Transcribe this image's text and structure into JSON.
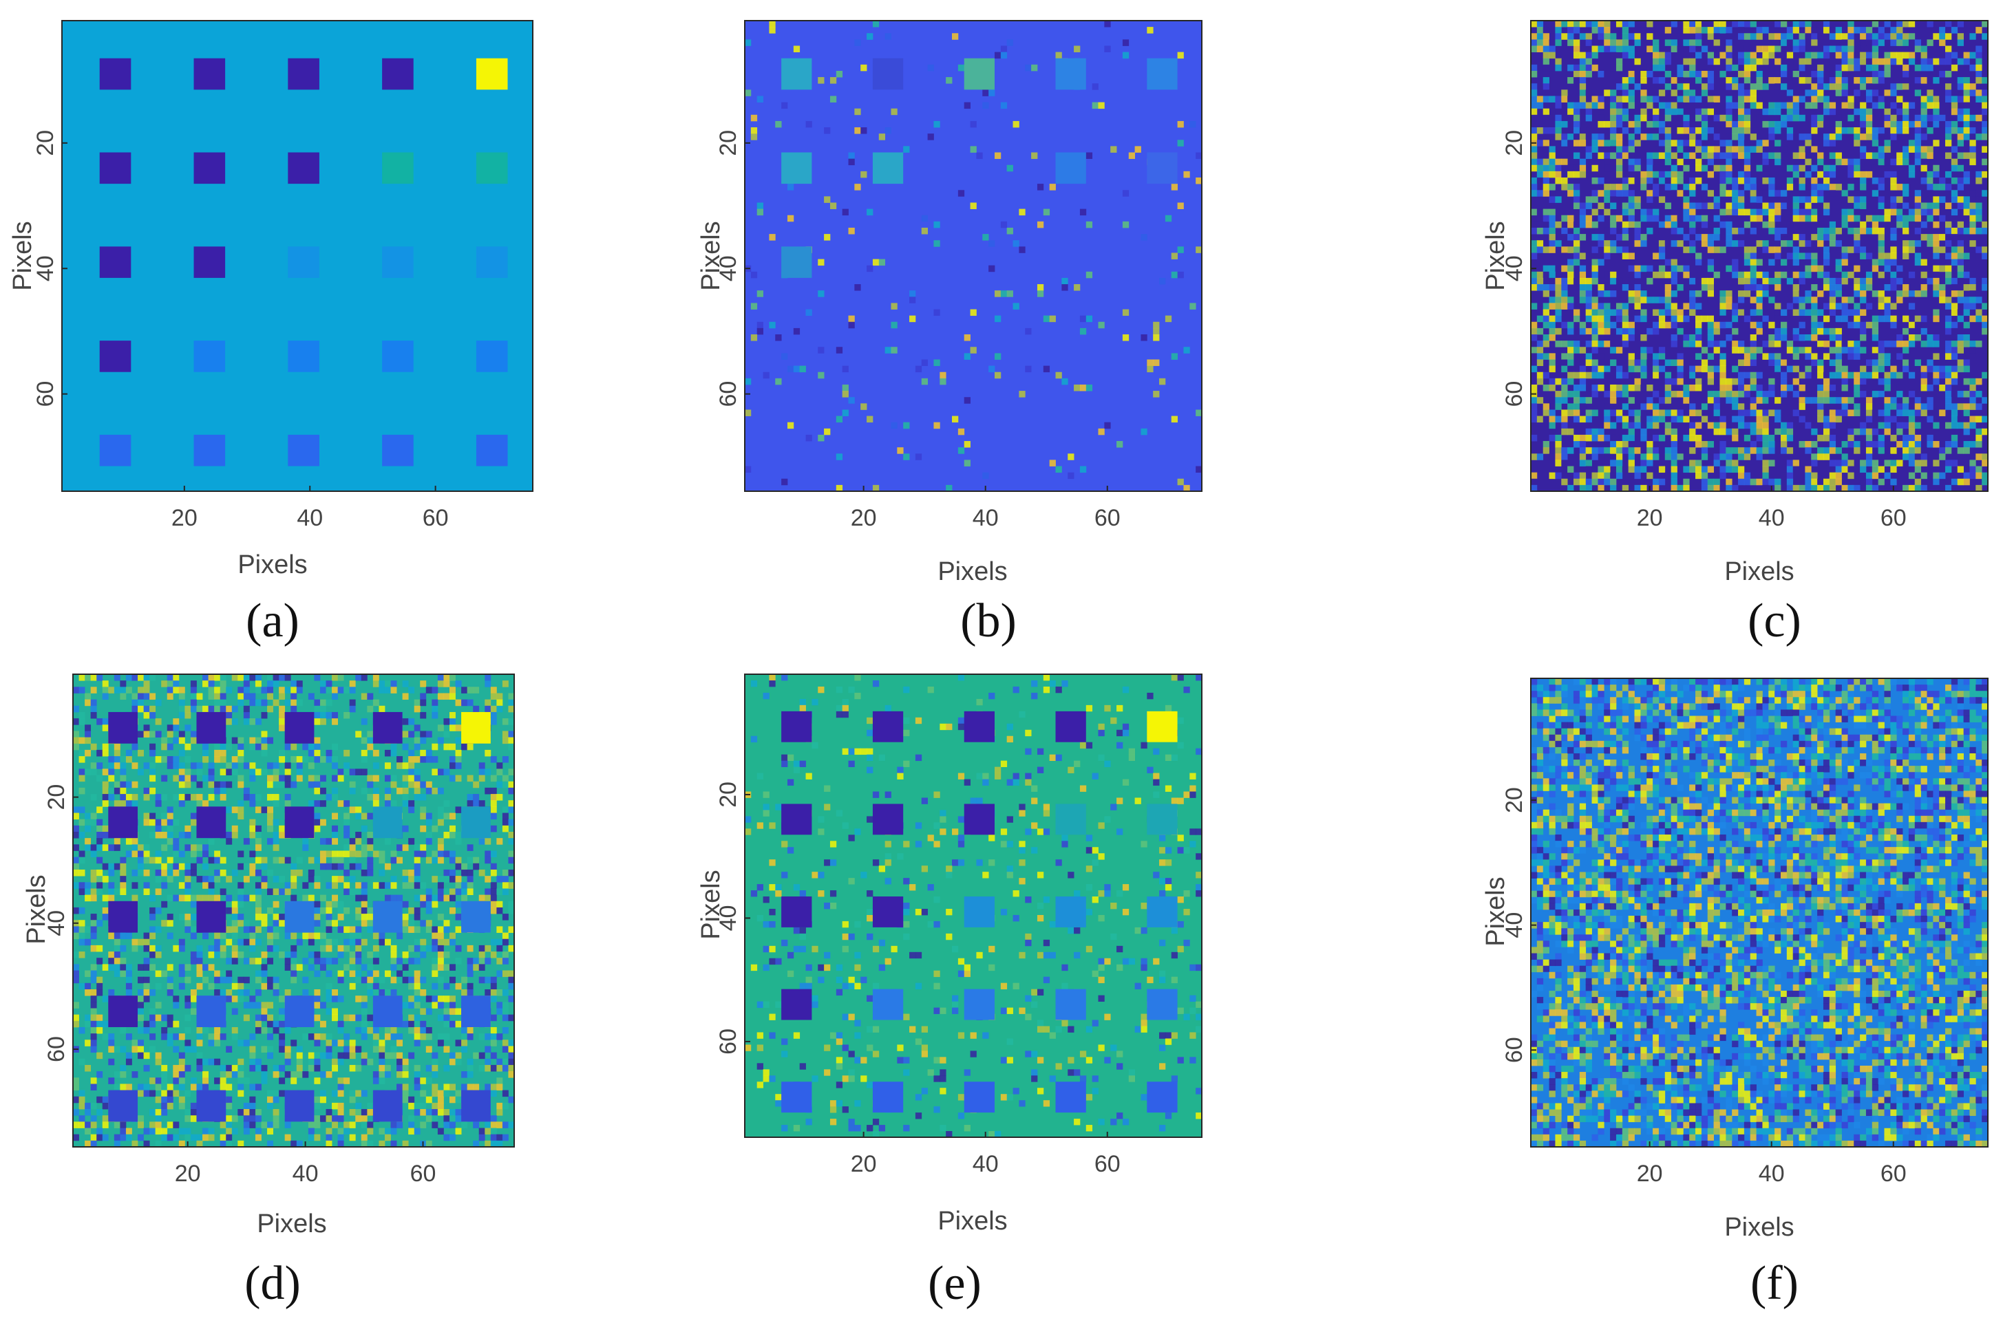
{
  "figure": {
    "panel_count": 6
  },
  "chart_data": [
    {
      "id": "a",
      "type": "heatmap",
      "panel_label": "(a)",
      "xlabel": "Pixels",
      "ylabel": "Pixels",
      "xlim": [
        1,
        75
      ],
      "ylim": [
        1,
        75
      ],
      "xticks": [
        20,
        40,
        60
      ],
      "yticks": [
        20,
        40,
        60
      ],
      "background_color": "#0ba4d8",
      "noise": 0,
      "block_colors": [
        [
          "#3b1fa8",
          "#3b1fa8",
          "#3b1fa8",
          "#3b1fa8",
          "#f5f505"
        ],
        [
          "#3b1fa8",
          "#3b1fa8",
          "#3b1fa8",
          "#12b2a3",
          "#12b2a3"
        ],
        [
          "#3b1fa8",
          "#3b1fa8",
          "#1393e4",
          "#1393e4",
          "#1393e4"
        ],
        [
          "#3b1fa8",
          "#1880ee",
          "#1880ee",
          "#1880ee",
          "#1880ee"
        ],
        [
          "#2a68ee",
          "#2a68ee",
          "#2a68ee",
          "#2a68ee",
          "#2a68ee"
        ]
      ]
    },
    {
      "id": "b",
      "type": "heatmap",
      "panel_label": "(b)",
      "xlabel": "Pixels",
      "ylabel": "Pixels",
      "xlim": [
        1,
        75
      ],
      "ylim": [
        1,
        75
      ],
      "xticks": [
        20,
        40,
        60
      ],
      "yticks": [
        20,
        40,
        60
      ],
      "background_color": "#3f55ec",
      "noise": 0.05,
      "block_colors": [
        [
          "#2aa6c8",
          "#3a4bd8",
          "#4bb39a",
          "#2d83e4",
          "#2d83e4"
        ],
        [
          "#2aa6c8",
          "#2aa6c8",
          "",
          "#2d7be6",
          "#3c66e8"
        ],
        [
          "#2a8fd2",
          "",
          "",
          "",
          ""
        ],
        [
          "",
          "",
          "",
          "",
          ""
        ],
        [
          "",
          "",
          "",
          "",
          ""
        ]
      ]
    },
    {
      "id": "c",
      "type": "heatmap",
      "panel_label": "(c)",
      "xlabel": "Pixels",
      "ylabel": "Pixels",
      "xlim": [
        1,
        75
      ],
      "ylim": [
        1,
        75
      ],
      "xticks": [
        20,
        40,
        60
      ],
      "yticks": [
        20,
        40,
        60
      ],
      "background_color": "#3722a0",
      "noise": 0.55,
      "block_colors": []
    },
    {
      "id": "d",
      "type": "heatmap",
      "panel_label": "(d)",
      "xlabel": "Pixels",
      "ylabel": "Pixels",
      "xlim": [
        1,
        75
      ],
      "ylim": [
        1,
        75
      ],
      "xticks": [
        20,
        40,
        60
      ],
      "yticks": [
        20,
        40,
        60
      ],
      "background_color": "#22b09a",
      "noise": 0.45,
      "block_colors": [
        [
          "#3b1fa8",
          "#3b1fa8",
          "#3b1fa8",
          "#3b1fa8",
          "#f5f505"
        ],
        [
          "#3b1fa8",
          "#3b1fa8",
          "#3b1fa8",
          "#1b9cc2",
          "#1b9cc2"
        ],
        [
          "#3b1fa8",
          "#3b1fa8",
          "#2a78e0",
          "#2a78e0",
          "#2a78e0"
        ],
        [
          "#3b1fa8",
          "#2e62e0",
          "#2e62e0",
          "#2e62e0",
          "#2e62e0"
        ],
        [
          "#3448d0",
          "#3448d0",
          "#3448d0",
          "#3448d0",
          "#3448d0"
        ]
      ]
    },
    {
      "id": "e",
      "type": "heatmap",
      "panel_label": "(e)",
      "xlabel": "Pixels",
      "ylabel": "Pixels",
      "xlim": [
        1,
        75
      ],
      "ylim": [
        1,
        75
      ],
      "xticks": [
        20,
        40,
        60
      ],
      "yticks": [
        20,
        40,
        60
      ],
      "background_color": "#22b38f",
      "noise": 0.12,
      "block_colors": [
        [
          "#3b1fa8",
          "#3b1fa8",
          "#3b1fa8",
          "#3b1fa8",
          "#f5f505"
        ],
        [
          "#3b1fa8",
          "#3b1fa8",
          "#3b1fa8",
          "#1da6b4",
          "#1da6b4"
        ],
        [
          "#3b1fa8",
          "#3b1fa8",
          "#1d8fd8",
          "#1d8fd8",
          "#1d8fd8"
        ],
        [
          "#3b1fa8",
          "#2a7ae6",
          "#2a7ae6",
          "#2a7ae6",
          "#2a7ae6"
        ],
        [
          "#3060e8",
          "#3060e8",
          "#3060e8",
          "#3060e8",
          "#3060e8"
        ]
      ]
    },
    {
      "id": "f",
      "type": "heatmap",
      "panel_label": "(f)",
      "xlabel": "Pixels",
      "ylabel": "Pixels",
      "xlim": [
        1,
        75
      ],
      "ylim": [
        1,
        75
      ],
      "xticks": [
        20,
        40,
        60
      ],
      "yticks": [
        20,
        40,
        60
      ],
      "background_color": "#1e7fe0",
      "noise": 0.6,
      "block_colors": []
    }
  ]
}
